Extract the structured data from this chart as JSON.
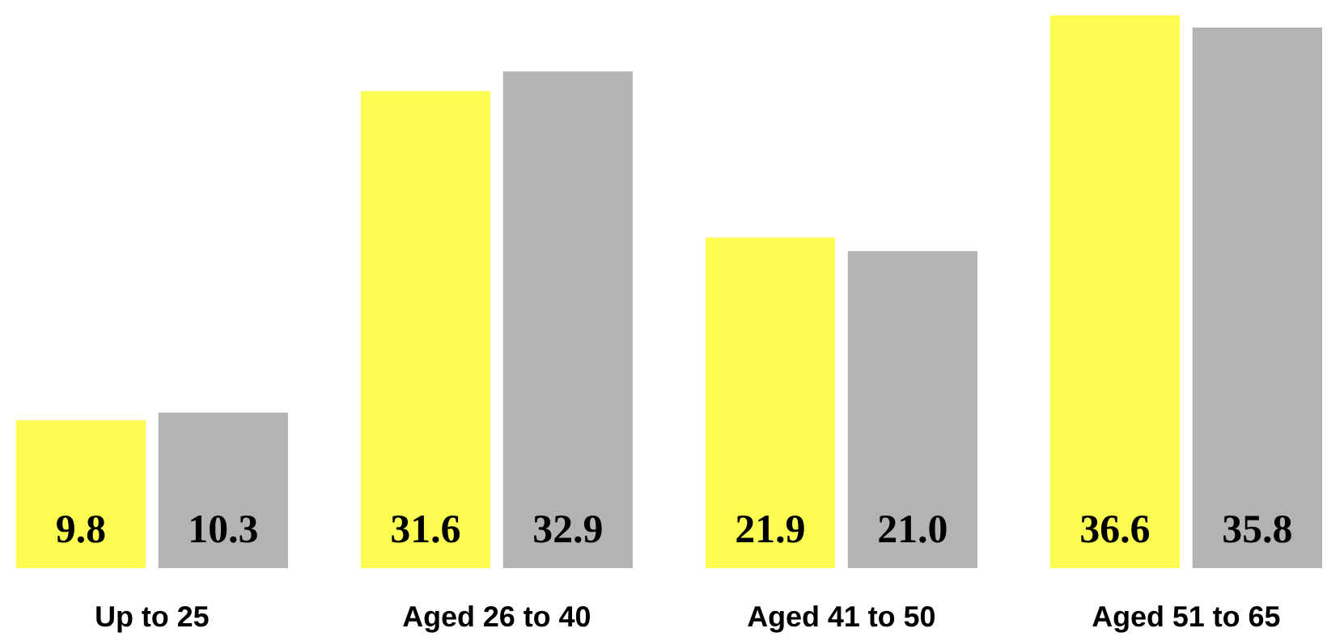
{
  "chart_data": {
    "type": "bar",
    "categories": [
      "Up to 25",
      "Aged 26 to 40",
      "Aged 41 to 50",
      "Aged 51 to 65"
    ],
    "series": [
      {
        "color": "#fdfc50",
        "values": [
          9.8,
          31.6,
          21.9,
          36.6
        ],
        "value_labels": [
          "9.8",
          "31.6",
          "21.9",
          "36.6"
        ]
      },
      {
        "color": "#b3b3b3",
        "values": [
          10.3,
          32.9,
          21.0,
          35.8
        ],
        "value_labels": [
          "10.3",
          "32.9",
          "21.0",
          "35.8"
        ]
      }
    ]
  }
}
